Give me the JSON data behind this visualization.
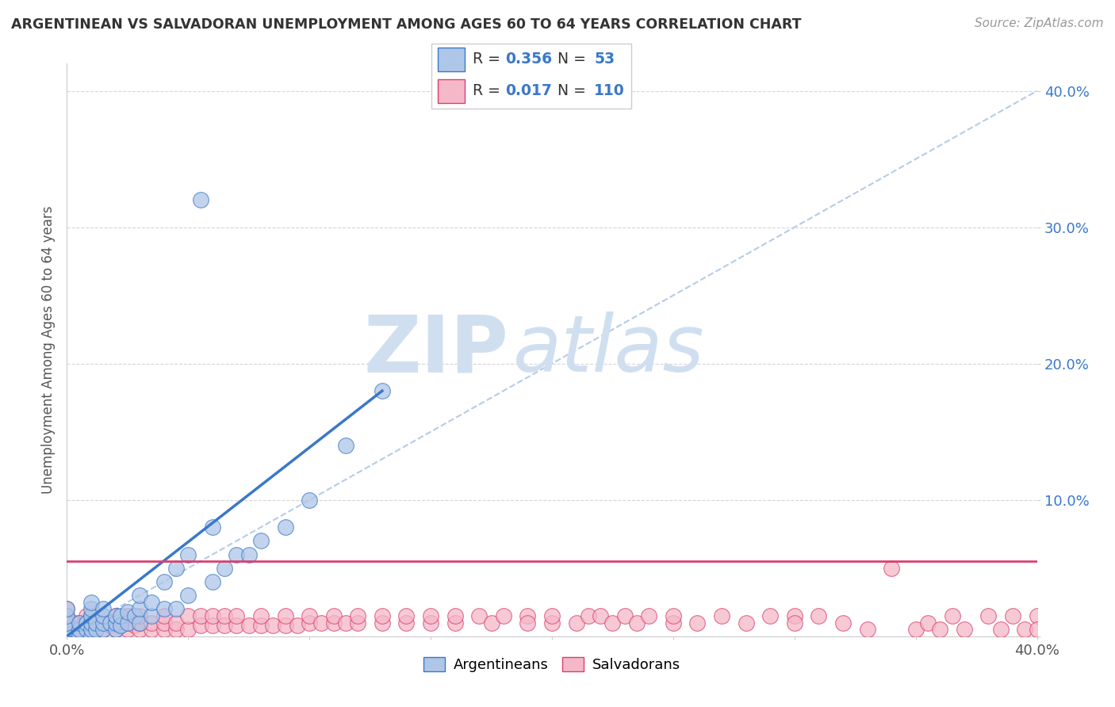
{
  "title": "ARGENTINEAN VS SALVADORAN UNEMPLOYMENT AMONG AGES 60 TO 64 YEARS CORRELATION CHART",
  "source": "Source: ZipAtlas.com",
  "ylabel": "Unemployment Among Ages 60 to 64 years",
  "xlim": [
    0.0,
    0.4
  ],
  "ylim": [
    0.0,
    0.42
  ],
  "legend1_r": "0.356",
  "legend1_n": "53",
  "legend2_r": "0.017",
  "legend2_n": "110",
  "blue_color": "#aec6e8",
  "pink_color": "#f5b8c8",
  "blue_line_color": "#3a78c9",
  "pink_line_color": "#d94070",
  "dash_line_color": "#aec6e8",
  "watermark_color": "#d0dff0",
  "arg_x": [
    0.0,
    0.0,
    0.0,
    0.0,
    0.0,
    0.005,
    0.005,
    0.005,
    0.008,
    0.008,
    0.01,
    0.01,
    0.01,
    0.01,
    0.01,
    0.01,
    0.012,
    0.012,
    0.015,
    0.015,
    0.015,
    0.015,
    0.018,
    0.02,
    0.02,
    0.02,
    0.022,
    0.022,
    0.025,
    0.025,
    0.028,
    0.03,
    0.03,
    0.03,
    0.035,
    0.035,
    0.04,
    0.04,
    0.045,
    0.045,
    0.05,
    0.05,
    0.055,
    0.06,
    0.06,
    0.065,
    0.07,
    0.075,
    0.08,
    0.09,
    0.1,
    0.115,
    0.13
  ],
  "arg_y": [
    0.0,
    0.005,
    0.01,
    0.015,
    0.02,
    0.0,
    0.005,
    0.01,
    0.005,
    0.01,
    0.0,
    0.005,
    0.01,
    0.015,
    0.02,
    0.025,
    0.005,
    0.01,
    0.005,
    0.01,
    0.015,
    0.02,
    0.01,
    0.005,
    0.01,
    0.015,
    0.008,
    0.015,
    0.01,
    0.018,
    0.015,
    0.01,
    0.02,
    0.03,
    0.015,
    0.025,
    0.02,
    0.04,
    0.02,
    0.05,
    0.03,
    0.06,
    0.32,
    0.04,
    0.08,
    0.05,
    0.06,
    0.06,
    0.07,
    0.08,
    0.1,
    0.14,
    0.18
  ],
  "sal_x": [
    0.0,
    0.0,
    0.0,
    0.0,
    0.0,
    0.003,
    0.003,
    0.005,
    0.005,
    0.007,
    0.007,
    0.008,
    0.01,
    0.01,
    0.01,
    0.01,
    0.012,
    0.012,
    0.015,
    0.015,
    0.015,
    0.018,
    0.02,
    0.02,
    0.02,
    0.022,
    0.025,
    0.025,
    0.025,
    0.028,
    0.03,
    0.03,
    0.03,
    0.035,
    0.035,
    0.04,
    0.04,
    0.04,
    0.045,
    0.045,
    0.05,
    0.05,
    0.055,
    0.055,
    0.06,
    0.06,
    0.065,
    0.065,
    0.07,
    0.07,
    0.075,
    0.08,
    0.08,
    0.085,
    0.09,
    0.09,
    0.095,
    0.1,
    0.1,
    0.105,
    0.11,
    0.11,
    0.115,
    0.12,
    0.12,
    0.13,
    0.13,
    0.14,
    0.14,
    0.15,
    0.15,
    0.16,
    0.16,
    0.17,
    0.175,
    0.18,
    0.19,
    0.19,
    0.2,
    0.2,
    0.21,
    0.215,
    0.22,
    0.225,
    0.23,
    0.235,
    0.24,
    0.25,
    0.25,
    0.26,
    0.27,
    0.28,
    0.29,
    0.3,
    0.3,
    0.31,
    0.32,
    0.33,
    0.34,
    0.35,
    0.355,
    0.36,
    0.365,
    0.37,
    0.38,
    0.385,
    0.39,
    0.395,
    0.4,
    0.4
  ],
  "sal_y": [
    0.0,
    0.005,
    0.01,
    0.015,
    0.02,
    0.005,
    0.01,
    0.005,
    0.01,
    0.005,
    0.01,
    0.015,
    0.0,
    0.005,
    0.01,
    0.015,
    0.005,
    0.01,
    0.005,
    0.01,
    0.015,
    0.008,
    0.005,
    0.01,
    0.015,
    0.008,
    0.005,
    0.01,
    0.015,
    0.008,
    0.005,
    0.01,
    0.015,
    0.005,
    0.01,
    0.005,
    0.01,
    0.015,
    0.005,
    0.01,
    0.005,
    0.015,
    0.008,
    0.015,
    0.008,
    0.015,
    0.008,
    0.015,
    0.008,
    0.015,
    0.008,
    0.008,
    0.015,
    0.008,
    0.008,
    0.015,
    0.008,
    0.01,
    0.015,
    0.01,
    0.01,
    0.015,
    0.01,
    0.01,
    0.015,
    0.01,
    0.015,
    0.01,
    0.015,
    0.01,
    0.015,
    0.01,
    0.015,
    0.015,
    0.01,
    0.015,
    0.015,
    0.01,
    0.01,
    0.015,
    0.01,
    0.015,
    0.015,
    0.01,
    0.015,
    0.01,
    0.015,
    0.01,
    0.015,
    0.01,
    0.015,
    0.01,
    0.015,
    0.015,
    0.01,
    0.015,
    0.01,
    0.005,
    0.05,
    0.005,
    0.01,
    0.005,
    0.015,
    0.005,
    0.015,
    0.005,
    0.015,
    0.005,
    0.015,
    0.005
  ],
  "blue_line_x": [
    0.0,
    0.13
  ],
  "blue_line_y": [
    0.0,
    0.18
  ],
  "dash_line_x": [
    0.0,
    0.4
  ],
  "dash_line_y": [
    0.0,
    0.4
  ],
  "pink_line_x": [
    0.0,
    0.4
  ],
  "pink_line_y": [
    0.055,
    0.055
  ]
}
